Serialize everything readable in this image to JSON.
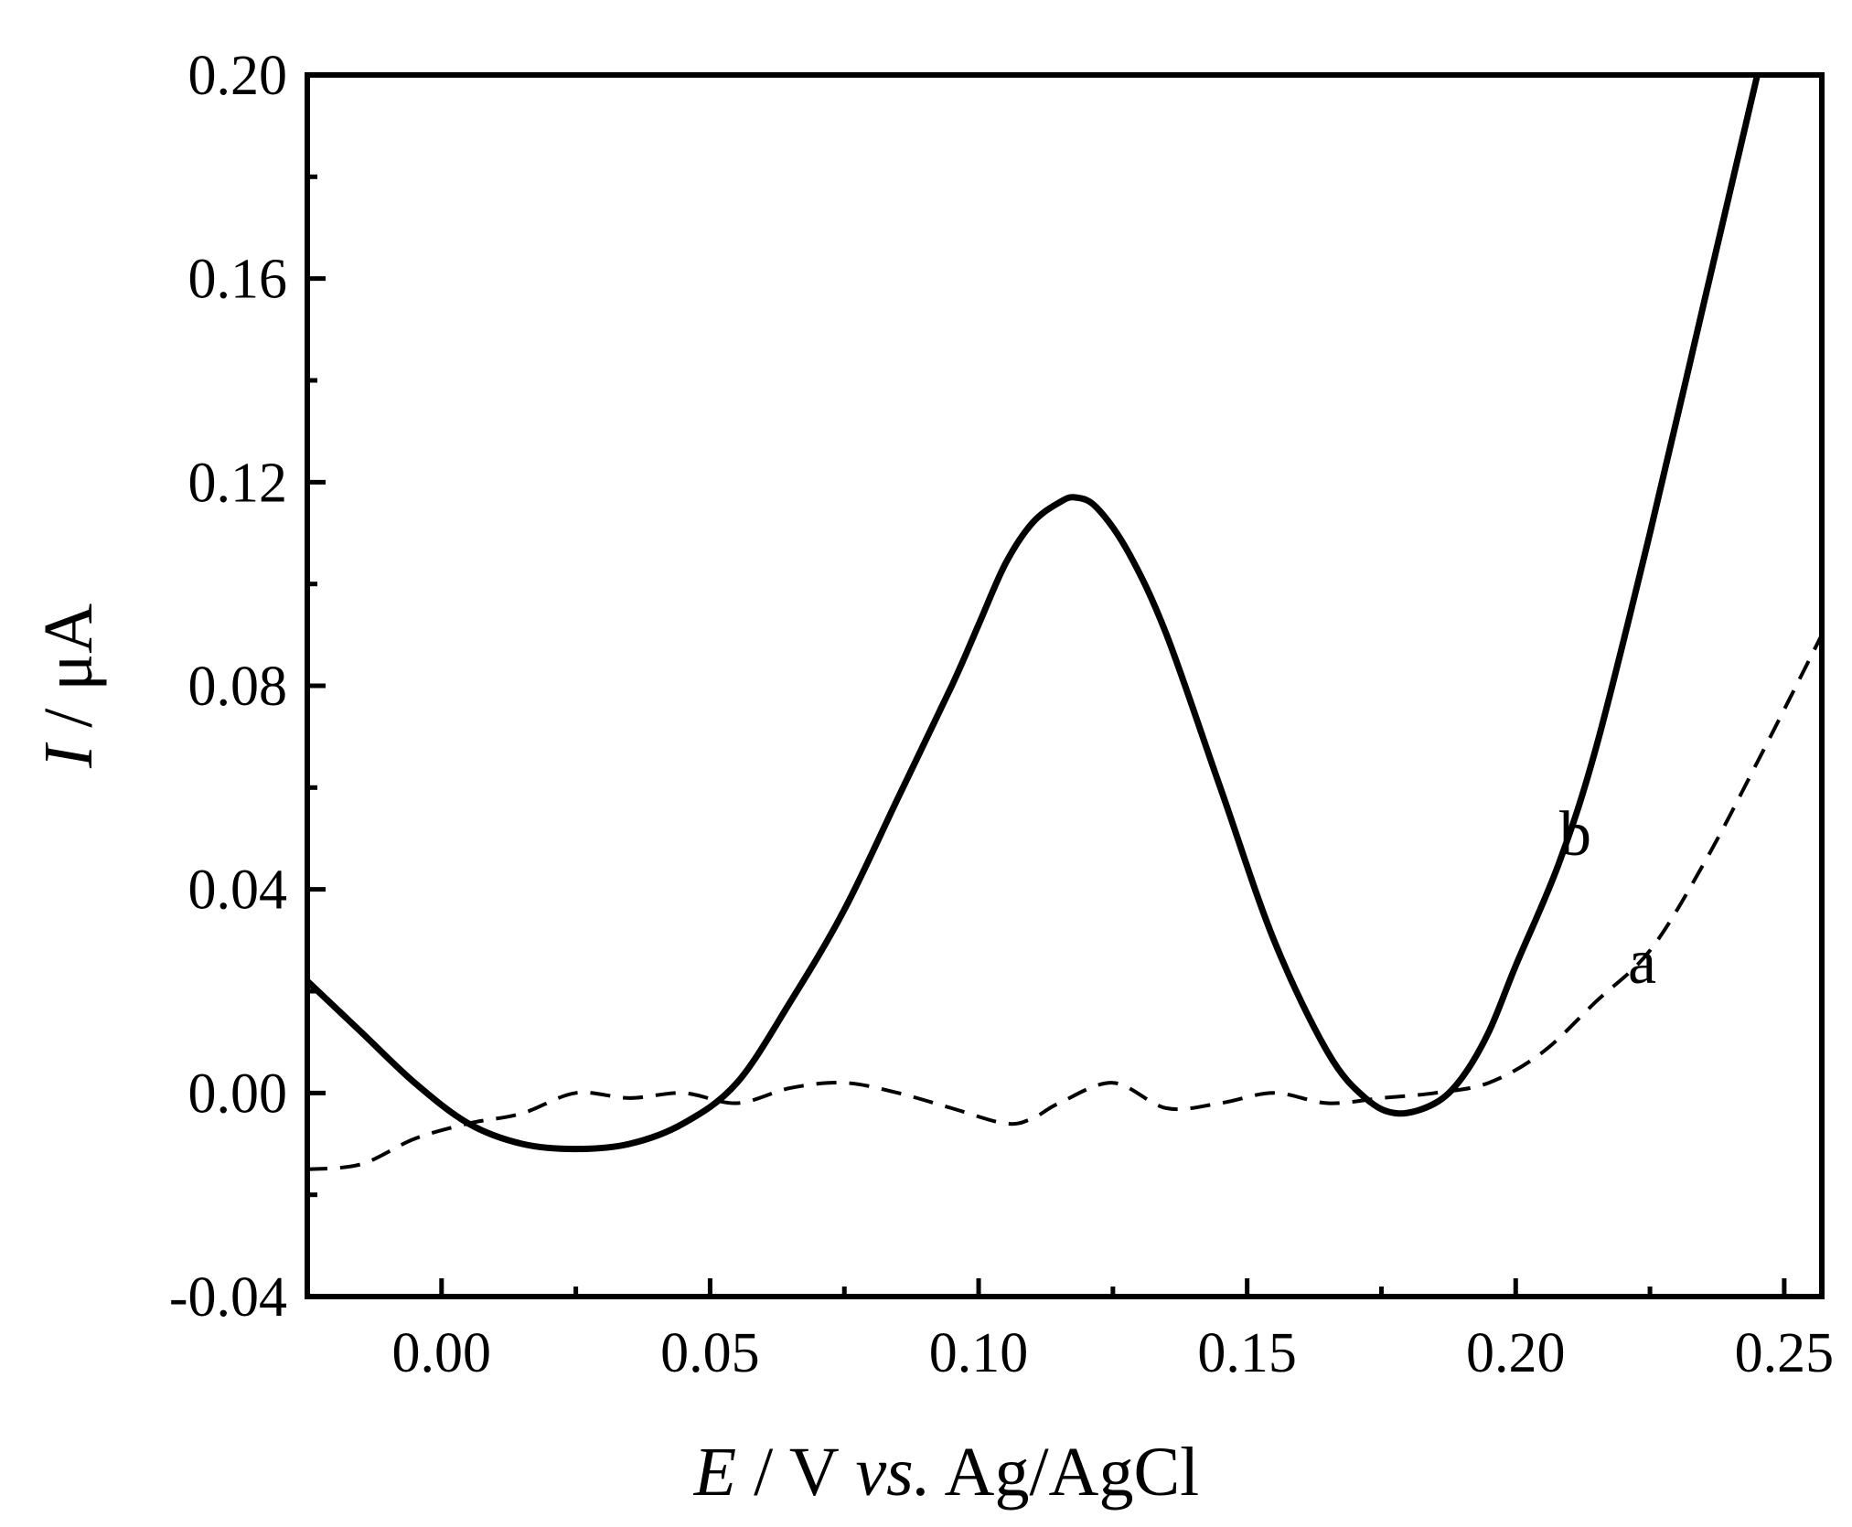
{
  "chart_data": {
    "type": "line",
    "title": "",
    "xlabel": {
      "symbol": "E",
      "text": " / V ",
      "italic": "vs.",
      "rest": " Ag/AgCl"
    },
    "ylabel": {
      "symbol": "I",
      "text": " / μA"
    },
    "xlim": [
      -0.025,
      0.257
    ],
    "ylim": [
      -0.04,
      0.2
    ],
    "xticks": [
      0.0,
      0.05,
      0.1,
      0.15,
      0.2,
      0.25
    ],
    "xtick_labels": [
      "0.00",
      "0.05",
      "0.10",
      "0.15",
      "0.20",
      "0.25"
    ],
    "yticks": [
      -0.04,
      0.0,
      0.04,
      0.08,
      0.12,
      0.16,
      0.2
    ],
    "ytick_labels": [
      "-0.04",
      "0.00",
      "0.04",
      "0.08",
      "0.12",
      "0.16",
      "0.20"
    ],
    "grid": false,
    "legend": "none",
    "series": [
      {
        "label": "a",
        "style": "dashed",
        "color": "#000000",
        "x": [
          -0.025,
          -0.015,
          -0.005,
          0.005,
          0.015,
          0.025,
          0.035,
          0.045,
          0.055,
          0.065,
          0.075,
          0.085,
          0.095,
          0.105,
          0.11,
          0.115,
          0.125,
          0.135,
          0.145,
          0.155,
          0.165,
          0.175,
          0.185,
          0.195,
          0.205,
          0.215,
          0.225,
          0.235,
          0.245,
          0.257
        ],
        "y": [
          -0.015,
          -0.014,
          -0.009,
          -0.006,
          -0.004,
          0.0,
          -0.001,
          0.0,
          -0.002,
          0.001,
          0.002,
          0.0,
          -0.003,
          -0.006,
          -0.005,
          -0.002,
          0.002,
          -0.003,
          -0.002,
          0.0,
          -0.002,
          -0.001,
          0.0,
          0.002,
          0.008,
          0.018,
          0.028,
          0.045,
          0.065,
          0.09
        ]
      },
      {
        "label": "b",
        "style": "solid",
        "color": "#000000",
        "x": [
          -0.025,
          -0.015,
          -0.005,
          0.005,
          0.015,
          0.025,
          0.035,
          0.045,
          0.055,
          0.065,
          0.075,
          0.085,
          0.095,
          0.1,
          0.105,
          0.11,
          0.115,
          0.118,
          0.122,
          0.128,
          0.135,
          0.145,
          0.155,
          0.165,
          0.172,
          0.178,
          0.185,
          0.19,
          0.195,
          0.2,
          0.208,
          0.215,
          0.225,
          0.235,
          0.245
        ],
        "y": [
          0.022,
          0.012,
          0.002,
          -0.006,
          -0.01,
          -0.011,
          -0.01,
          -0.006,
          0.002,
          0.018,
          0.036,
          0.058,
          0.08,
          0.092,
          0.104,
          0.112,
          0.116,
          0.117,
          0.115,
          0.106,
          0.09,
          0.06,
          0.03,
          0.008,
          -0.001,
          -0.004,
          -0.002,
          0.003,
          0.012,
          0.025,
          0.045,
          0.068,
          0.11,
          0.155,
          0.2
        ]
      }
    ]
  }
}
